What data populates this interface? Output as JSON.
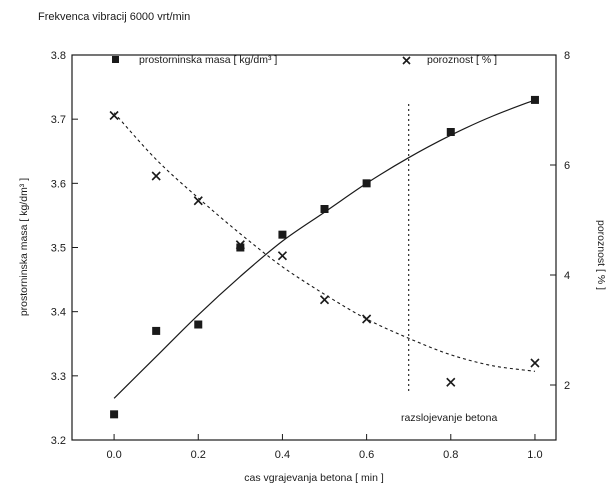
{
  "chart_data": {
    "type": "scatter",
    "title": "Frekvenca vibracij 6000 vrt/min",
    "xlabel": "cas vgrajevanja betona [ min ]",
    "ylabel_left": "prostorninska masa [ kg/dm³ ]",
    "ylabel_right": "poroznost [ % ]",
    "xlim": [
      -0.1,
      1.05
    ],
    "ylim_left": [
      3.2,
      3.8
    ],
    "ylim_right": [
      1,
      8
    ],
    "x_ticks": [
      "0.0",
      "0.2",
      "0.4",
      "0.6",
      "0.8",
      "1.0"
    ],
    "y_left_ticks": [
      "3.2",
      "3.3",
      "3.4",
      "3.5",
      "3.6",
      "3.7",
      "3.8"
    ],
    "y_right_ticks": [
      "2",
      "4",
      "6",
      "8"
    ],
    "grid": false,
    "legend": [
      {
        "label": "prostorninska masa [ kg/dm³ ]",
        "marker": "square"
      },
      {
        "label": "poroznost [ % ]",
        "marker": "x"
      }
    ],
    "series": [
      {
        "name": "prostorninska masa [ kg/dm³ ]",
        "axis": "left",
        "marker": "square",
        "x": [
          0.0,
          0.1,
          0.2,
          0.3,
          0.4,
          0.5,
          0.6,
          0.8,
          1.0
        ],
        "values": [
          3.24,
          3.37,
          3.38,
          3.5,
          3.52,
          3.56,
          3.6,
          3.68,
          3.73
        ],
        "fit": {
          "style": "solid",
          "x": [
            0.0,
            0.1,
            0.2,
            0.3,
            0.4,
            0.5,
            0.6,
            0.7,
            0.8,
            0.9,
            1.0
          ],
          "values": [
            3.265,
            3.33,
            3.395,
            3.455,
            3.51,
            3.555,
            3.6,
            3.64,
            3.675,
            3.705,
            3.73
          ]
        }
      },
      {
        "name": "poroznost [ % ]",
        "axis": "right",
        "marker": "x",
        "x": [
          0.0,
          0.1,
          0.2,
          0.3,
          0.4,
          0.5,
          0.6,
          0.8,
          1.0
        ],
        "values": [
          6.9,
          5.8,
          5.35,
          4.55,
          4.35,
          3.55,
          3.2,
          2.05,
          2.4
        ],
        "fit": {
          "style": "dashed",
          "x": [
            0.0,
            0.1,
            0.2,
            0.3,
            0.4,
            0.5,
            0.6,
            0.7,
            0.8,
            0.9,
            1.0
          ],
          "values": [
            6.95,
            6.1,
            5.4,
            4.75,
            4.15,
            3.65,
            3.2,
            2.85,
            2.55,
            2.35,
            2.25
          ]
        }
      }
    ],
    "annotations": [
      {
        "text": "razslojevanje betona",
        "x": 0.7,
        "line": "dotted-vertical"
      }
    ],
    "colors": {
      "ink": "#1a1a1a",
      "background": "#ffffff"
    }
  }
}
